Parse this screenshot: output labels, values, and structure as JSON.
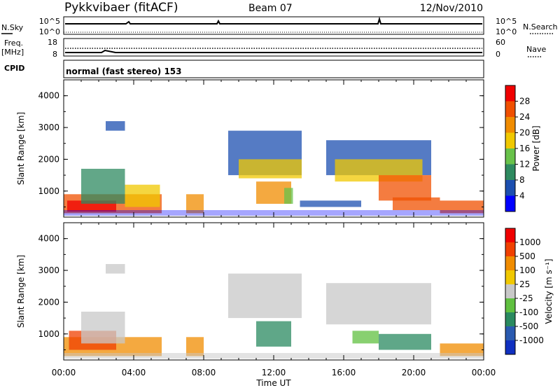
{
  "header": {
    "station": "Pykkvibaer (fitACF)",
    "beam": "Beam 07",
    "date": "12/Nov/2010"
  },
  "top_panels": {
    "nsky_label": "N.Sky",
    "nsearch_label": "N.Search",
    "nsky_ticks": [
      "10^5",
      "10^0"
    ],
    "nsearch_ticks": [
      "10^5",
      "10^0"
    ],
    "freq_label": "Freq.",
    "freq_unit": "[MHz]",
    "freq_ticks": [
      "18",
      "8"
    ],
    "nave_label": "Nave",
    "nave_ticks": [
      "60",
      "0"
    ],
    "cpid_label": "CPID",
    "cpid_text": "normal (fast stereo) 153"
  },
  "colors": {
    "power_scale": [
      "#0000ff",
      "#1c4fb0",
      "#2e8a60",
      "#68c24a",
      "#f0c800",
      "#f08c00",
      "#f05000",
      "#f00000"
    ],
    "velocity_scale": [
      "#1030c0",
      "#2a5ab0",
      "#2a8a60",
      "#60c040",
      "#c8c8c8",
      "#f0c800",
      "#f08c00",
      "#f04000",
      "#f00000"
    ]
  },
  "chart_data": [
    {
      "type": "heatmap",
      "name": "Power",
      "ylabel": "Slant Range [km]",
      "ylim": [
        180,
        4500
      ],
      "y_ticks": [
        "1000",
        "2000",
        "3000",
        "4000"
      ],
      "x_ticks": [
        "00:00",
        "04:00",
        "08:00",
        "12:00",
        "16:00",
        "20:00",
        "00:00"
      ],
      "colorbar_label": "Power [dB]",
      "colorbar_ticks": [
        "28",
        "24",
        "20",
        "16",
        "12",
        "8",
        "4"
      ],
      "regions": [
        {
          "t0": 0.0,
          "t1": 5.6,
          "r0": 300,
          "r1": 900,
          "level": 6
        },
        {
          "t0": 0.2,
          "t1": 3.0,
          "r0": 350,
          "r1": 700,
          "level": 7
        },
        {
          "t0": 1.0,
          "t1": 3.5,
          "r0": 600,
          "r1": 1700,
          "level": 2
        },
        {
          "t0": 3.5,
          "t1": 5.5,
          "r0": 500,
          "r1": 1200,
          "level": 4
        },
        {
          "t0": 7.0,
          "t1": 8.0,
          "r0": 300,
          "r1": 900,
          "level": 5
        },
        {
          "t0": 2.4,
          "t1": 3.5,
          "r0": 2900,
          "r1": 3200,
          "level": 1
        },
        {
          "t0": 9.4,
          "t1": 13.6,
          "r0": 1500,
          "r1": 2900,
          "level": 1
        },
        {
          "t0": 10.0,
          "t1": 13.6,
          "r0": 1400,
          "r1": 2000,
          "level": 4
        },
        {
          "t0": 11.0,
          "t1": 13.0,
          "r0": 600,
          "r1": 1300,
          "level": 5
        },
        {
          "t0": 12.6,
          "t1": 13.1,
          "r0": 600,
          "r1": 1100,
          "level": 3
        },
        {
          "t0": 15.0,
          "t1": 21.0,
          "r0": 1500,
          "r1": 2600,
          "level": 1
        },
        {
          "t0": 15.5,
          "t1": 20.5,
          "r0": 1300,
          "r1": 2000,
          "level": 4
        },
        {
          "t0": 18.0,
          "t1": 21.0,
          "r0": 700,
          "r1": 1500,
          "level": 6
        },
        {
          "t0": 18.8,
          "t1": 21.5,
          "r0": 400,
          "r1": 800,
          "level": 6
        },
        {
          "t0": 13.5,
          "t1": 17.0,
          "r0": 500,
          "r1": 700,
          "level": 1
        },
        {
          "t0": 21.5,
          "t1": 24.0,
          "r0": 300,
          "r1": 700,
          "level": 6
        }
      ]
    },
    {
      "type": "heatmap",
      "name": "Velocity",
      "ylabel": "Slant Range [km]",
      "ylim": [
        180,
        4500
      ],
      "y_ticks": [
        "1000",
        "2000",
        "3000",
        "4000"
      ],
      "x_ticks": [
        "00:00",
        "04:00",
        "08:00",
        "12:00",
        "16:00",
        "20:00",
        "00:00"
      ],
      "xlabel": "Time UT",
      "colorbar_label": "Velocity [m s⁻¹]",
      "colorbar_ticks": [
        "1000",
        "500",
        "100",
        "25",
        "-25",
        "-100",
        "-500",
        "-1000"
      ],
      "regions": [
        {
          "t0": 0.0,
          "t1": 5.6,
          "r0": 300,
          "r1": 900,
          "level": 6
        },
        {
          "t0": 0.3,
          "t1": 3.0,
          "r0": 500,
          "r1": 1100,
          "level": 7
        },
        {
          "t0": 1.0,
          "t1": 3.5,
          "r0": 700,
          "r1": 1700,
          "level": 4
        },
        {
          "t0": 2.4,
          "t1": 3.5,
          "r0": 2900,
          "r1": 3200,
          "level": 4
        },
        {
          "t0": 7.0,
          "t1": 8.0,
          "r0": 300,
          "r1": 900,
          "level": 6
        },
        {
          "t0": 9.4,
          "t1": 13.6,
          "r0": 1500,
          "r1": 2900,
          "level": 4
        },
        {
          "t0": 11.0,
          "t1": 13.0,
          "r0": 600,
          "r1": 1400,
          "level": 2
        },
        {
          "t0": 15.0,
          "t1": 21.0,
          "r0": 1300,
          "r1": 2600,
          "level": 4
        },
        {
          "t0": 18.0,
          "t1": 21.0,
          "r0": 500,
          "r1": 1000,
          "level": 2
        },
        {
          "t0": 16.5,
          "t1": 18.0,
          "r0": 700,
          "r1": 1100,
          "level": 3
        },
        {
          "t0": 21.5,
          "t1": 24.0,
          "r0": 300,
          "r1": 700,
          "level": 6
        }
      ]
    }
  ]
}
